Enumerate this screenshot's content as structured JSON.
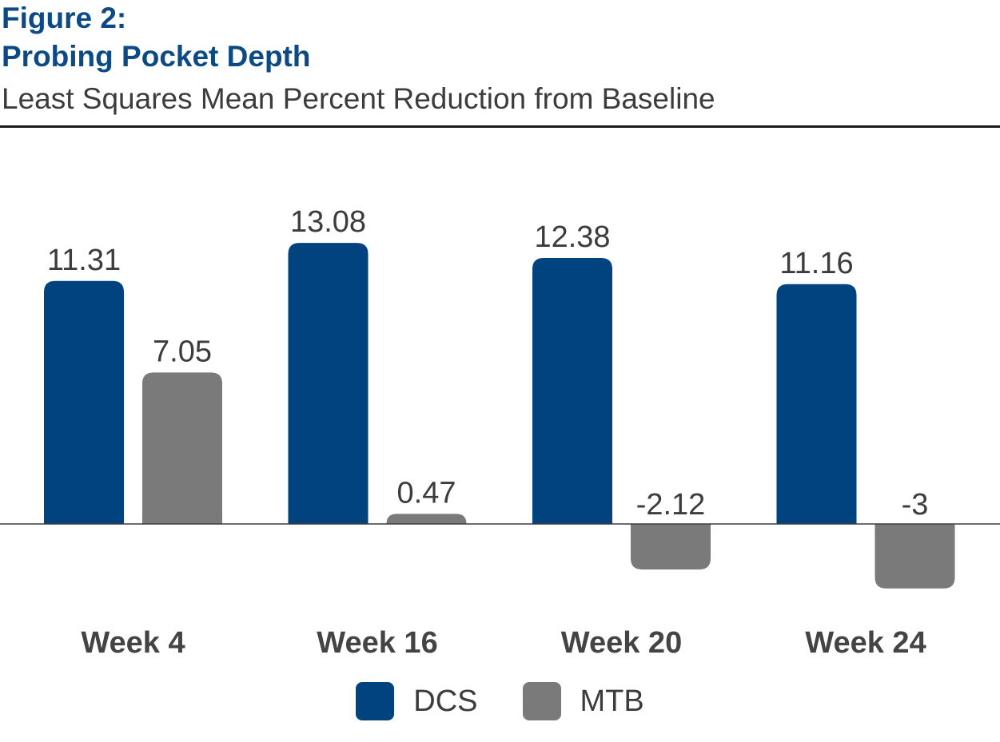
{
  "chart_data": {
    "type": "bar",
    "figure_label": "Figure 2:",
    "title": "Probing Pocket Depth",
    "subtitle": "Least Squares Mean Percent Reduction from Baseline",
    "categories": [
      "Week 4",
      "Week 16",
      "Week 20",
      "Week 24"
    ],
    "series": [
      {
        "name": "DCS",
        "color": "#00437e",
        "values": [
          11.31,
          13.08,
          12.38,
          11.16
        ],
        "labels": [
          "11.31",
          "13.08",
          "12.38",
          "11.16"
        ]
      },
      {
        "name": "MTB",
        "color": "#7a7a7a",
        "values": [
          7.05,
          0.47,
          -2.12,
          -3
        ],
        "labels": [
          "7.05",
          "0.47",
          "-2.12",
          "-3"
        ]
      }
    ],
    "ylim": [
      -3.5,
      15
    ],
    "grid": false,
    "legend_position": "bottom-center"
  }
}
